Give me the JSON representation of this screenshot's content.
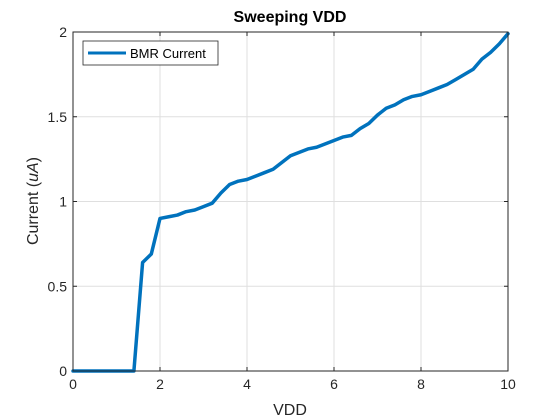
{
  "chart_data": {
    "type": "line",
    "title": "Sweeping VDD",
    "xlabel": "VDD",
    "ylabel": {
      "prefix": "Current (",
      "italic": "uA",
      "suffix": ")"
    },
    "xlim": [
      0,
      10
    ],
    "ylim": [
      0,
      2
    ],
    "xticks": [
      0,
      2,
      4,
      6,
      8,
      10
    ],
    "yticks": [
      0,
      0.5,
      1,
      1.5,
      2
    ],
    "xtick_labels": [
      "0",
      "2",
      "4",
      "6",
      "8",
      "10"
    ],
    "ytick_labels": [
      "0",
      "0.5",
      "1",
      "1.5",
      "2"
    ],
    "grid": true,
    "legend_location": "top-left",
    "series": [
      {
        "name": "BMR Current",
        "color": "#0072BD",
        "x": [
          0,
          1.4,
          1.6,
          1.8,
          2.0,
          2.2,
          2.4,
          2.6,
          2.8,
          3.0,
          3.2,
          3.4,
          3.6,
          3.8,
          4.0,
          4.2,
          4.4,
          4.6,
          4.8,
          5.0,
          5.2,
          5.4,
          5.6,
          5.8,
          6.0,
          6.2,
          6.4,
          6.6,
          6.8,
          7.0,
          7.2,
          7.4,
          7.6,
          7.8,
          8.0,
          8.2,
          8.4,
          8.6,
          8.8,
          9.0,
          9.2,
          9.4,
          9.6,
          9.8,
          10.0
        ],
        "y": [
          0,
          0,
          0.64,
          0.69,
          0.9,
          0.91,
          0.92,
          0.94,
          0.95,
          0.97,
          0.99,
          1.05,
          1.1,
          1.12,
          1.13,
          1.15,
          1.17,
          1.19,
          1.23,
          1.27,
          1.29,
          1.31,
          1.32,
          1.34,
          1.36,
          1.38,
          1.39,
          1.43,
          1.46,
          1.51,
          1.55,
          1.57,
          1.6,
          1.62,
          1.63,
          1.65,
          1.67,
          1.69,
          1.72,
          1.75,
          1.78,
          1.84,
          1.88,
          1.93,
          1.99
        ]
      }
    ]
  }
}
